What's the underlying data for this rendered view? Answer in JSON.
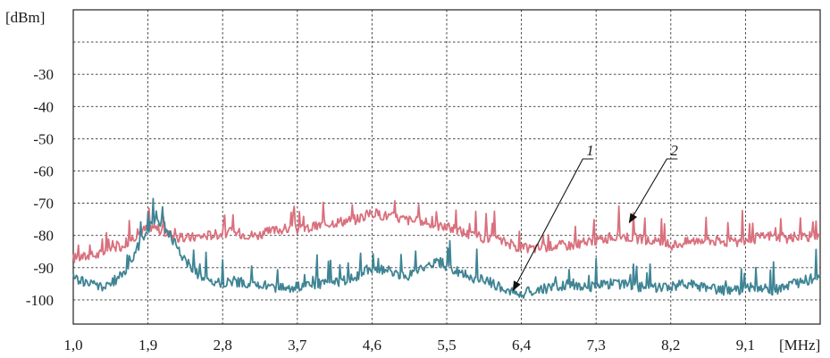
{
  "chart_data": {
    "type": "line",
    "title": "",
    "y_unit": "[dBm]",
    "x_unit": "[MHz]",
    "xlim": [
      1.0,
      10.0
    ],
    "ylim": [
      -107.5,
      -10
    ],
    "x_ticks": [
      "1,0",
      "1,9",
      "2,8",
      "3,7",
      "4,6",
      "5,5",
      "6,4",
      "7,3",
      "8,2",
      "9,1"
    ],
    "x_tick_values": [
      1.0,
      1.9,
      2.8,
      3.7,
      4.6,
      5.5,
      6.4,
      7.3,
      8.2,
      9.1
    ],
    "y_ticks": [
      "-30",
      "-40",
      "-50",
      "-60",
      "-70",
      "-80",
      "-90",
      "-100"
    ],
    "y_tick_values": [
      -30,
      -40,
      -50,
      -60,
      -70,
      -80,
      -90,
      -100
    ],
    "grid": true,
    "series": [
      {
        "color": "#d9707d",
        "x": [
          1.0,
          1.3,
          1.6,
          1.8,
          1.95,
          2.1,
          2.3,
          2.6,
          2.9,
          3.2,
          3.5,
          3.8,
          4.1,
          4.4,
          4.6,
          4.8,
          5.0,
          5.2,
          5.4,
          5.6,
          5.8,
          6.0,
          6.2,
          6.4,
          6.6,
          6.8,
          7.0,
          7.2,
          7.4,
          7.6,
          7.8,
          8.0,
          8.2,
          8.4,
          8.6,
          8.8,
          9.0,
          9.2,
          9.4,
          9.6,
          9.8,
          10.0
        ],
        "y": [
          -87,
          -86,
          -83,
          -79,
          -77,
          -79,
          -81,
          -80,
          -79,
          -80,
          -78,
          -78,
          -76,
          -75,
          -73,
          -74,
          -75,
          -76,
          -77,
          -78,
          -80,
          -81,
          -82,
          -84,
          -84,
          -83,
          -83,
          -82,
          -81,
          -80,
          -81,
          -82,
          -83,
          -82,
          -81,
          -82,
          -82,
          -81,
          -80,
          -81,
          -80,
          -81
        ]
      },
      {
        "color": "#3f8494",
        "x": [
          1.0,
          1.2,
          1.4,
          1.6,
          1.75,
          1.9,
          2.0,
          2.15,
          2.3,
          2.5,
          2.7,
          2.9,
          3.1,
          3.4,
          3.7,
          4.0,
          4.3,
          4.6,
          4.8,
          5.0,
          5.2,
          5.4,
          5.6,
          5.8,
          6.0,
          6.2,
          6.4,
          6.6,
          6.8,
          7.0,
          7.2,
          7.4,
          7.6,
          7.8,
          8.0,
          8.2,
          8.4,
          8.6,
          8.8,
          9.0,
          9.2,
          9.4,
          9.6,
          9.8,
          10.0
        ],
        "y": [
          -93,
          -95,
          -96,
          -92,
          -85,
          -78,
          -74,
          -79,
          -86,
          -92,
          -95,
          -94,
          -95,
          -96,
          -96,
          -95,
          -94,
          -90,
          -91,
          -93,
          -90,
          -88,
          -91,
          -93,
          -94,
          -97,
          -98,
          -97,
          -96,
          -95,
          -96,
          -95,
          -95,
          -96,
          -96,
          -96,
          -95,
          -96,
          -97,
          -97,
          -96,
          -97,
          -96,
          -94,
          -93
        ]
      }
    ],
    "annotations": [
      {
        "label": "1",
        "target_x": 6.3,
        "target_y": -97
      },
      {
        "label": "2",
        "target_x": 7.7,
        "target_y": -76
      }
    ]
  }
}
